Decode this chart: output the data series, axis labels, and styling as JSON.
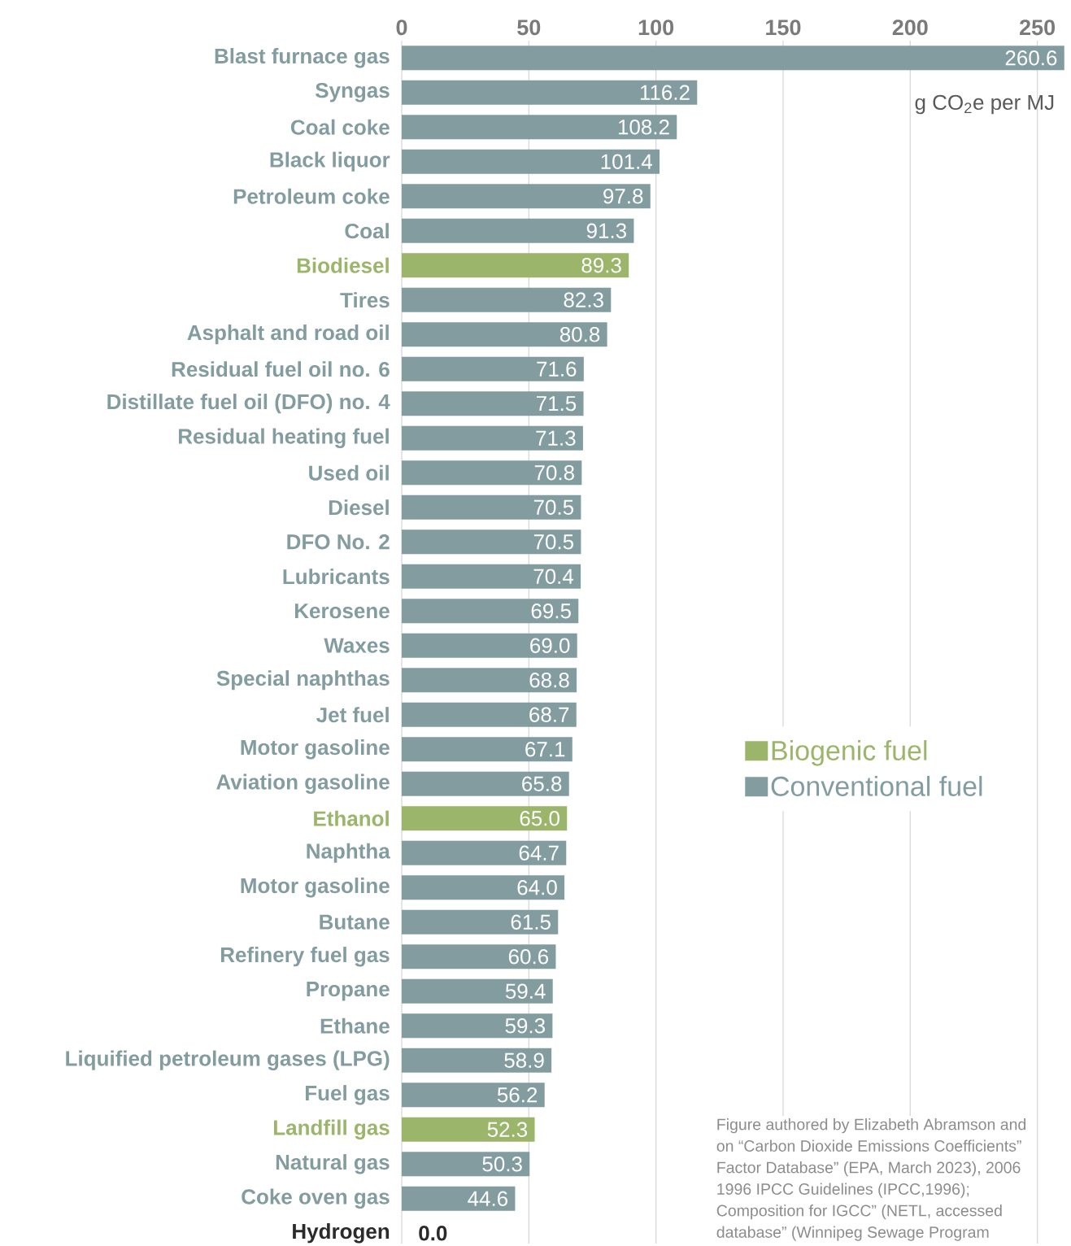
{
  "chart_data": {
    "type": "bar",
    "orientation": "horizontal",
    "categories": [
      "Blast furnace gas",
      "Syngas",
      "Coal coke",
      "Black liquor",
      "Petroleum coke",
      "Coal",
      "Biodiesel",
      "Tires",
      "Asphalt and road oil",
      "Residual fuel oil no. 6",
      "Distillate fuel oil (DFO) no. 4",
      "Residual heating fuel",
      "Used oil",
      "Diesel",
      "DFO No. 2",
      "Lubricants",
      "Kerosene",
      "Waxes",
      "Special naphthas",
      "Jet fuel",
      "Motor gasoline",
      "Aviation gasoline",
      "Ethanol",
      "Naphtha",
      "Motor gasoline",
      "Butane",
      "Refinery fuel gas",
      "Propane",
      "Ethane",
      "Liquified petroleum gases (LPG)",
      "Fuel gas",
      "Landfill gas",
      "Natural gas",
      "Coke oven gas",
      "Hydrogen"
    ],
    "series": [
      {
        "name": "Biogenic fuel",
        "color": "#9bb56a",
        "values": [
          null,
          null,
          null,
          null,
          null,
          null,
          89.3,
          null,
          null,
          null,
          null,
          null,
          null,
          null,
          null,
          null,
          null,
          null,
          null,
          null,
          null,
          null,
          65.0,
          null,
          null,
          null,
          null,
          null,
          null,
          null,
          null,
          52.3,
          null,
          null,
          null
        ],
        "value_labels": [
          null,
          null,
          null,
          null,
          null,
          null,
          "89.3",
          null,
          null,
          null,
          null,
          null,
          null,
          null,
          null,
          null,
          null,
          null,
          null,
          null,
          null,
          null,
          "65.0",
          null,
          null,
          null,
          null,
          null,
          null,
          null,
          null,
          "52.3",
          null,
          null,
          null
        ]
      },
      {
        "name": "Conventional fuel",
        "color": "#829c9f",
        "values": [
          260.6,
          116.2,
          108.2,
          101.4,
          97.8,
          91.3,
          null,
          82.3,
          80.8,
          71.6,
          71.5,
          71.3,
          70.8,
          70.5,
          70.5,
          70.4,
          69.5,
          69.0,
          68.8,
          68.7,
          67.1,
          65.8,
          null,
          64.7,
          64.0,
          61.5,
          60.6,
          59.4,
          59.3,
          58.9,
          56.2,
          null,
          50.3,
          44.6,
          null
        ],
        "value_labels": [
          "260.6",
          "116.2",
          "108.2",
          "101.4",
          "97.8",
          "91.3",
          null,
          "82.3",
          "80.8",
          "71.6",
          "71.5",
          "71.3",
          "70.8",
          "70.5",
          "70.5",
          "70.4",
          "69.5",
          "69.0",
          "68.8",
          "68.7",
          "67.1",
          "65.8",
          null,
          "64.7",
          "64.0",
          "61.5",
          "60.6",
          "59.4",
          "59.3",
          "58.9",
          "56.2",
          null,
          "50.3",
          "44.6",
          null
        ]
      },
      {
        "color": "#2b2b2b",
        "values": [
          null,
          null,
          null,
          null,
          null,
          null,
          null,
          null,
          null,
          null,
          null,
          null,
          null,
          null,
          null,
          null,
          null,
          null,
          null,
          null,
          null,
          null,
          null,
          null,
          null,
          null,
          null,
          null,
          null,
          null,
          null,
          null,
          null,
          null,
          0.0
        ],
        "value_labels": [
          null,
          null,
          null,
          null,
          null,
          null,
          null,
          null,
          null,
          null,
          null,
          null,
          null,
          null,
          null,
          null,
          null,
          null,
          null,
          null,
          null,
          null,
          null,
          null,
          null,
          null,
          null,
          null,
          null,
          null,
          null,
          null,
          null,
          null,
          "0.0"
        ]
      }
    ],
    "xlim": [
      0,
      261
    ],
    "xticks": [
      0,
      50,
      100,
      150,
      200,
      250
    ],
    "xlabel": "g CO$_{2}$e per MJ",
    "grid": "x",
    "legend": "center right",
    "annotations": [
      "Figure authored by Elizabeth Abramson and",
      "on “Carbon Dioxide Emissions Coefficients”",
      "Factor Database” (EPA, March 2023), 2006",
      "1996 IPCC Guidelines (IPCC,1996);",
      "Composition for IGCC” (NETL, accessed",
      "database” (Winnipeg Sewage Program"
    ]
  }
}
